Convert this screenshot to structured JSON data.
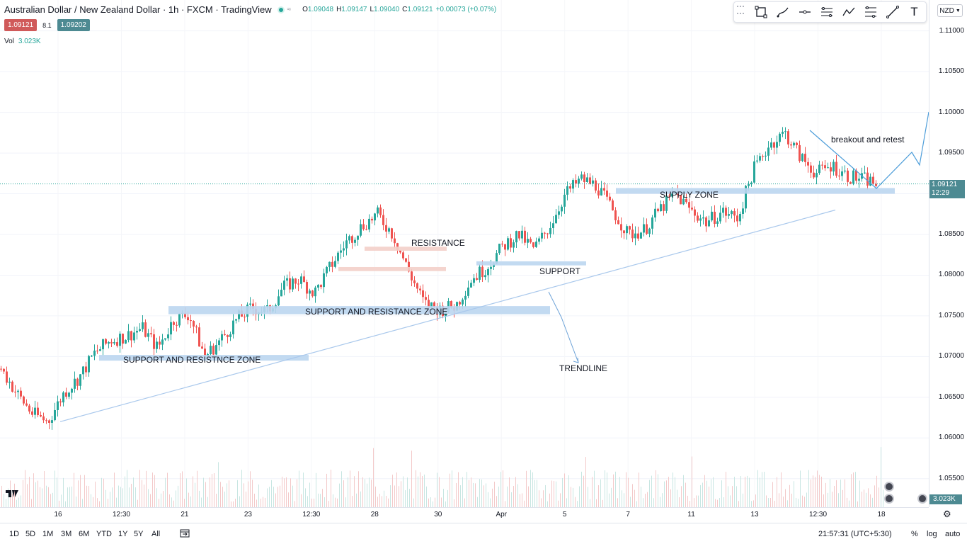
{
  "header": {
    "title": "Australian Dollar / New Zealand Dollar · 1h · FXCM · TradingView",
    "ohlc": {
      "open_label": "O",
      "open": "1.09048",
      "high_label": "H",
      "high": "1.09147",
      "low_label": "L",
      "low": "1.09040",
      "close_label": "C",
      "close": "1.09121",
      "change": "+0.00073 (+0.07%)"
    },
    "sell_price": "1.09121",
    "spread": "8.1",
    "buy_price": "1.09202",
    "volume_label": "Vol",
    "volume_value": "3.023K"
  },
  "toolbar": {
    "tools": [
      "rectangle-icon",
      "brush-icon",
      "horizontal-line-icon",
      "parallel-channel-icon",
      "path-icon",
      "fib-retracement-icon",
      "trend-line-icon",
      "text-icon"
    ],
    "text_tool_glyph": "T"
  },
  "price_axis": {
    "currency": "NZD",
    "current_price": "1.09121",
    "countdown": "12:29",
    "volume_badge": "3.023K"
  },
  "bottom_bar": {
    "ranges": [
      "1D",
      "5D",
      "1M",
      "3M",
      "6M",
      "YTD",
      "1Y",
      "5Y",
      "All"
    ],
    "clock": "21:57:31 (UTC+5:30)",
    "percent_label": "%",
    "log_label": "log",
    "auto_label": "auto"
  },
  "annotations": {
    "resistance": "RESISTANCE",
    "support": "SUPPORT",
    "sr_zone": "SUPPORT AND RESISTANCE ZONE",
    "sr_zone_low": "SUPPORT AND RESISTNCE ZONE",
    "trendline": "TRENDLINE",
    "supply_zone": "SUPPLY ZONE",
    "breakout": "breakout and retest"
  },
  "chart_data": {
    "type": "candlestick",
    "symbol": "AUDNZD",
    "interval": "1h",
    "price_ticks": [
      1.11,
      1.105,
      1.1,
      1.095,
      1.09,
      1.085,
      1.08,
      1.075,
      1.07,
      1.065,
      1.06,
      1.055
    ],
    "time_ticks": [
      "16",
      "12:30",
      "21",
      "23",
      "12:30",
      "28",
      "30",
      "Apr",
      "5",
      "7",
      "11",
      "13",
      "12:30",
      "18"
    ],
    "ylim": [
      1.0515,
      1.1138
    ],
    "close_path": [
      [
        "16-Mar",
        1.0685
      ],
      [
        "16-Mar",
        1.0655
      ],
      [
        "16-Mar",
        1.063
      ],
      [
        "16-Mar",
        1.062
      ],
      [
        "16-Mar",
        1.0655
      ],
      [
        "12:30",
        1.0675
      ],
      [
        "12:30",
        1.0705
      ],
      [
        "12:30",
        1.072
      ],
      [
        "21-Mar",
        1.0725
      ],
      [
        "21-Mar",
        1.0735
      ],
      [
        "21-Mar",
        1.071
      ],
      [
        "21-Mar",
        1.0745
      ],
      [
        "23-Mar",
        1.0752
      ],
      [
        "23-Mar",
        1.07
      ],
      [
        "23-Mar",
        1.072
      ],
      [
        "23-Mar",
        1.0745
      ],
      [
        "12:30",
        1.076
      ],
      [
        "12:30",
        1.0755
      ],
      [
        "12:30",
        1.0785
      ],
      [
        "12:30",
        1.0795
      ],
      [
        "28-Mar",
        1.0778
      ],
      [
        "28-Mar",
        1.081
      ],
      [
        "28-Mar",
        1.084
      ],
      [
        "28-Mar",
        1.086
      ],
      [
        "28-Mar",
        1.0875
      ],
      [
        "30-Mar",
        1.085
      ],
      [
        "30-Mar",
        1.0805
      ],
      [
        "30-Mar",
        1.0765
      ],
      [
        "30-Mar",
        1.0758
      ],
      [
        "30-Mar",
        1.0762
      ],
      [
        "Apr",
        1.0795
      ],
      [
        "Apr",
        1.081
      ],
      [
        "Apr",
        1.0835
      ],
      [
        "Apr",
        1.085
      ],
      [
        "Apr",
        1.0832
      ],
      [
        "5-Apr",
        1.086
      ],
      [
        "5-Apr",
        1.09
      ],
      [
        "5-Apr",
        1.0918
      ],
      [
        "5-Apr",
        1.091
      ],
      [
        "7-Apr",
        1.088
      ],
      [
        "7-Apr",
        1.085
      ],
      [
        "7-Apr",
        1.0855
      ],
      [
        "7-Apr",
        1.088
      ],
      [
        "11-Apr",
        1.09
      ],
      [
        "11-Apr",
        1.088
      ],
      [
        "11-Apr",
        1.0865
      ],
      [
        "11-Apr",
        1.0878
      ],
      [
        "13-Apr",
        1.087
      ],
      [
        "13-Apr",
        1.093
      ],
      [
        "13-Apr",
        1.096
      ],
      [
        "13-Apr",
        1.0975
      ],
      [
        "13-Apr",
        1.0945
      ],
      [
        "12:30",
        1.0925
      ],
      [
        "12:30",
        1.0935
      ],
      [
        "12:30",
        1.0922
      ],
      [
        "12:30",
        1.0918
      ],
      [
        "12:30",
        1.0912
      ]
    ],
    "zones": [
      {
        "label": "SUPPORT AND RESISTNCE ZONE",
        "low": 1.0695,
        "high": 1.0702
      },
      {
        "label": "SUPPORT AND RESISTANCE ZONE",
        "low": 1.0752,
        "high": 1.0762
      },
      {
        "label": "RESISTANCE",
        "low": 1.083,
        "high": 1.0835
      },
      {
        "label": "RESISTANCE",
        "low": 1.0805,
        "high": 1.081
      },
      {
        "label": "SUPPORT",
        "low": 1.0812,
        "high": 1.0817
      },
      {
        "label": "SUPPLY ZONE",
        "low": 1.09,
        "high": 1.0907
      }
    ],
    "trendline": {
      "label": "TRENDLINE",
      "from": 1.062,
      "to": 1.088
    },
    "projection": "breakout and retest",
    "current_price": 1.09121
  }
}
